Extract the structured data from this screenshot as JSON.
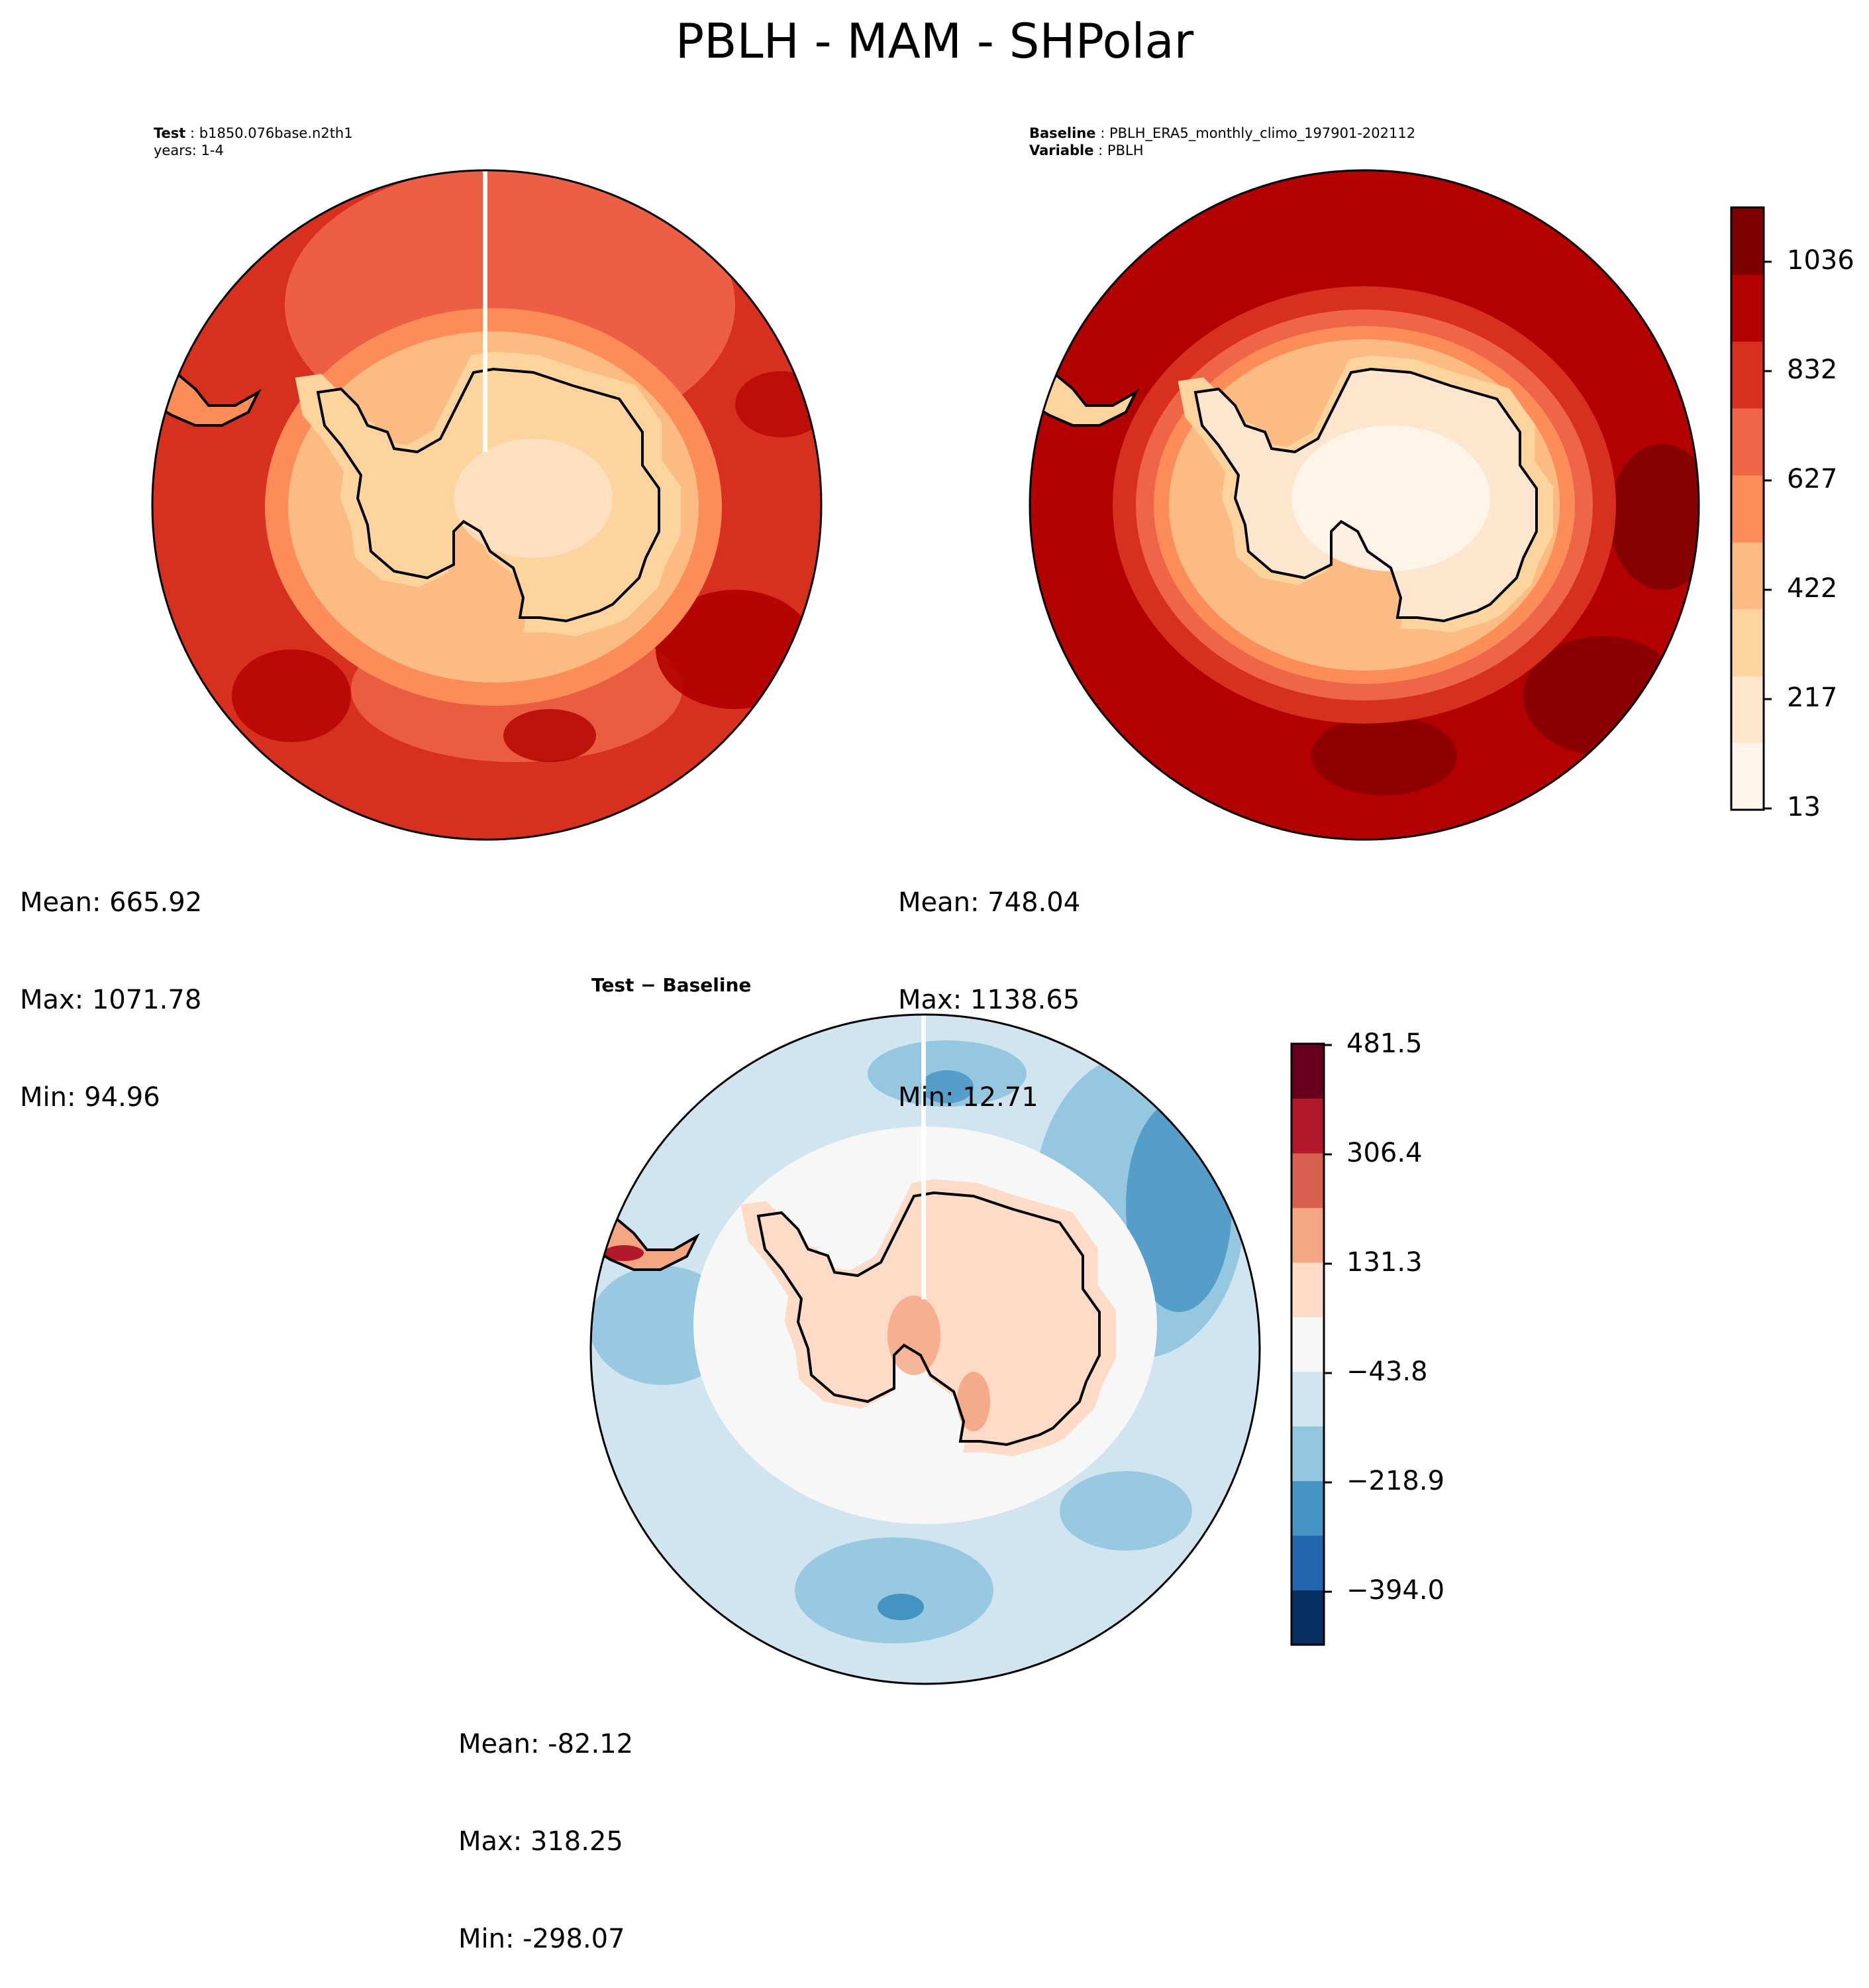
{
  "figure": {
    "title": "PBLH - MAM - SHPolar"
  },
  "panels": [
    {
      "id": "test",
      "header_lines": [
        {
          "key": "Test",
          "value": "b1850.076base.n2th1"
        },
        {
          "key": "",
          "value": "years: 1-4"
        }
      ],
      "stats": {
        "mean": "Mean: 665.92",
        "max": "Max: 1071.78",
        "min": "Min: 94.96"
      }
    },
    {
      "id": "baseline",
      "header_lines": [
        {
          "key": "Baseline",
          "value": "PBLH_ERA5_monthly_climo_197901-202112"
        },
        {
          "key": "Variable",
          "value": "PBLH"
        }
      ],
      "stats": {
        "mean": "Mean: 748.04",
        "max": "Max: 1138.65",
        "min": "Min: 12.71"
      }
    },
    {
      "id": "difference",
      "header": "Test − Baseline",
      "stats": {
        "mean": "Mean: -82.12",
        "max": "Max: 318.25",
        "min": "Min: -298.07"
      }
    }
  ],
  "colorbars": {
    "top": {
      "ticks": [
        "1036",
        "832",
        "627",
        "422",
        "217",
        "13"
      ],
      "colors": [
        "#fff5eb",
        "#fee6ce",
        "#fdd49e",
        "#fdbb84",
        "#fc8d59",
        "#ef6548",
        "#d7301f",
        "#b30000",
        "#7f0000"
      ]
    },
    "difference": {
      "ticks": [
        "481.5",
        "306.4",
        "131.3",
        "−43.8",
        "−218.9",
        "−394.0"
      ],
      "colors": [
        "#053061",
        "#2166ac",
        "#4393c3",
        "#92c5de",
        "#d1e5f0",
        "#f7f7f7",
        "#fddbc7",
        "#f4a582",
        "#d6604d",
        "#b2182b",
        "#67001f"
      ]
    }
  },
  "palette": {
    "ocean_top": "#d7301f",
    "ocean_top_light": "#ef6548",
    "ocean_base": "#b30000",
    "ocean_base_dark": "#8b0000",
    "ice": "#fdd49e",
    "ice_light": "#fee6ce",
    "diff_ocean": "#d1e5f0",
    "diff_blue": "#92c5de",
    "diff_blue_dark": "#4393c3",
    "diff_land": "#fddbc7",
    "diff_land_dark": "#f4a582"
  }
}
